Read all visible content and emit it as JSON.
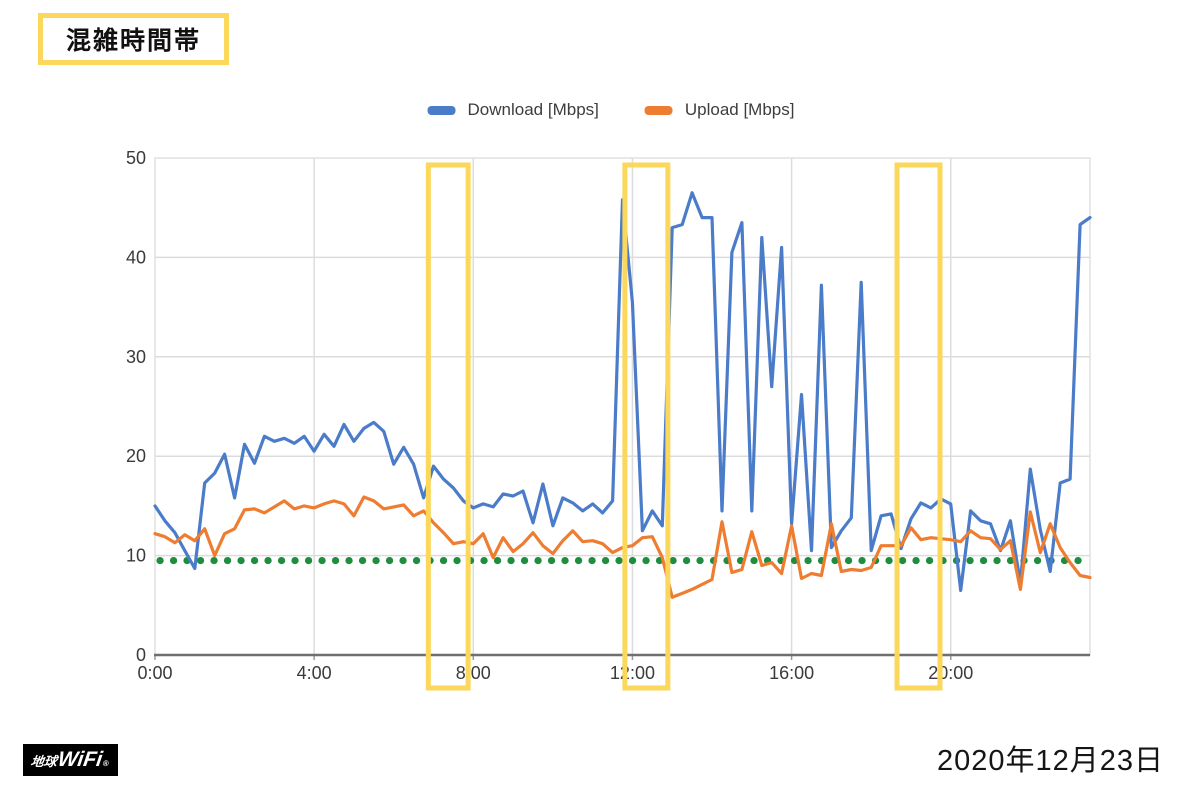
{
  "page": {
    "background": "#ffffff"
  },
  "title_box": {
    "text": "混雑時間帯",
    "border_color": "#fbd75b",
    "text_color": "#111111"
  },
  "legend": {
    "position": "top",
    "items": [
      {
        "label": "Download [Mbps]",
        "color": "#4a7cc9"
      },
      {
        "label": "Upload [Mbps]",
        "color": "#ee7d31"
      }
    ]
  },
  "footer": {
    "logo_text_prefix": "地球",
    "logo_text_brand": "WiFi",
    "logo_reg_mark": "®",
    "logo_bg": "#000000",
    "logo_fg": "#ffffff",
    "date_text": "2020年12月23日"
  },
  "chart_data": {
    "type": "line",
    "title": "",
    "xlabel": "",
    "ylabel": "",
    "legend_position": "top",
    "x_axis": {
      "unit": "time of day",
      "start_hour": 0,
      "step_hours": 0.25,
      "end_hour": 23.5,
      "tick_hours": [
        0,
        4,
        8,
        12,
        16,
        20
      ],
      "tick_labels": [
        "0:00",
        "4:00",
        "8:00",
        "12:00",
        "16:00",
        "20:00"
      ]
    },
    "y_axis": {
      "min": 0,
      "max": 50,
      "ticks": [
        0,
        10,
        20,
        30,
        40,
        50
      ]
    },
    "grid": {
      "show": true,
      "color": "#dcdcdc"
    },
    "series": [
      {
        "name": "Download [Mbps]",
        "color": "#4a7cc9",
        "unit": "Mbps",
        "values": [
          15.0,
          13.5,
          12.3,
          10.5,
          8.7,
          17.3,
          18.3,
          20.2,
          15.8,
          21.2,
          19.3,
          22.0,
          21.5,
          21.8,
          21.3,
          22.0,
          20.5,
          22.2,
          21.0,
          23.2,
          21.5,
          22.8,
          23.4,
          22.5,
          19.2,
          20.9,
          19.2,
          15.8,
          19.0,
          17.7,
          16.8,
          15.5,
          14.8,
          15.2,
          14.9,
          16.2,
          16.0,
          16.5,
          13.3,
          17.2,
          13.0,
          15.8,
          15.3,
          14.5,
          15.2,
          14.3,
          15.5,
          45.8,
          35.5,
          12.5,
          14.5,
          13.0,
          43.0,
          43.3,
          46.5,
          44.0,
          44.0,
          14.5,
          40.5,
          43.5,
          14.5,
          42.0,
          27.0,
          41.0,
          13.2,
          26.2,
          10.5,
          37.2,
          10.8,
          12.5,
          13.8,
          37.5,
          10.5,
          14.0,
          14.2,
          10.7,
          13.7,
          15.3,
          14.8,
          15.7,
          15.2,
          6.5,
          14.5,
          13.5,
          13.2,
          10.5,
          13.5,
          7.2,
          18.7,
          12.6,
          8.4,
          17.3,
          17.7,
          43.3,
          44.0
        ]
      },
      {
        "name": "Upload [Mbps]",
        "color": "#ee7d31",
        "unit": "Mbps",
        "values": [
          12.2,
          11.9,
          11.3,
          12.1,
          11.5,
          12.7,
          10.0,
          12.2,
          12.7,
          14.6,
          14.7,
          14.3,
          14.9,
          15.5,
          14.7,
          15.0,
          14.8,
          15.2,
          15.5,
          15.2,
          14.0,
          15.9,
          15.5,
          14.7,
          14.9,
          15.1,
          14.0,
          14.5,
          13.3,
          12.3,
          11.2,
          11.4,
          11.2,
          12.2,
          9.8,
          11.8,
          10.4,
          11.2,
          12.3,
          11.0,
          10.2,
          11.5,
          12.5,
          11.4,
          11.5,
          11.2,
          10.3,
          10.8,
          11.0,
          11.8,
          11.9,
          9.8,
          5.8,
          6.2,
          6.6,
          7.1,
          7.6,
          13.4,
          8.3,
          8.6,
          12.4,
          9.0,
          9.3,
          8.2,
          13.0,
          7.7,
          8.2,
          8.0,
          13.2,
          8.4,
          8.6,
          8.5,
          8.8,
          11.0,
          11.0,
          11.0,
          12.8,
          11.6,
          11.8,
          11.7,
          11.6,
          11.4,
          12.5,
          11.8,
          11.7,
          10.6,
          11.5,
          6.6,
          14.4,
          10.3,
          13.2,
          10.8,
          9.3,
          8.0,
          7.8
        ]
      }
    ],
    "reference_line": {
      "value": 9.5,
      "color": "#1e8e3e",
      "style": "dotted"
    },
    "highlight_bands": {
      "color": "#fbd75b",
      "meaning": "混雑時間帯 (congested time bands)",
      "bands": [
        {
          "approx_time_range": "7:00–8:00",
          "start_hour": 6.87,
          "end_hour": 7.87
        },
        {
          "approx_time_range": "12:00–13:00",
          "start_hour": 11.81,
          "end_hour": 12.89
        },
        {
          "approx_time_range": "19:00–20:00",
          "start_hour": 18.65,
          "end_hour": 19.73
        }
      ]
    }
  }
}
